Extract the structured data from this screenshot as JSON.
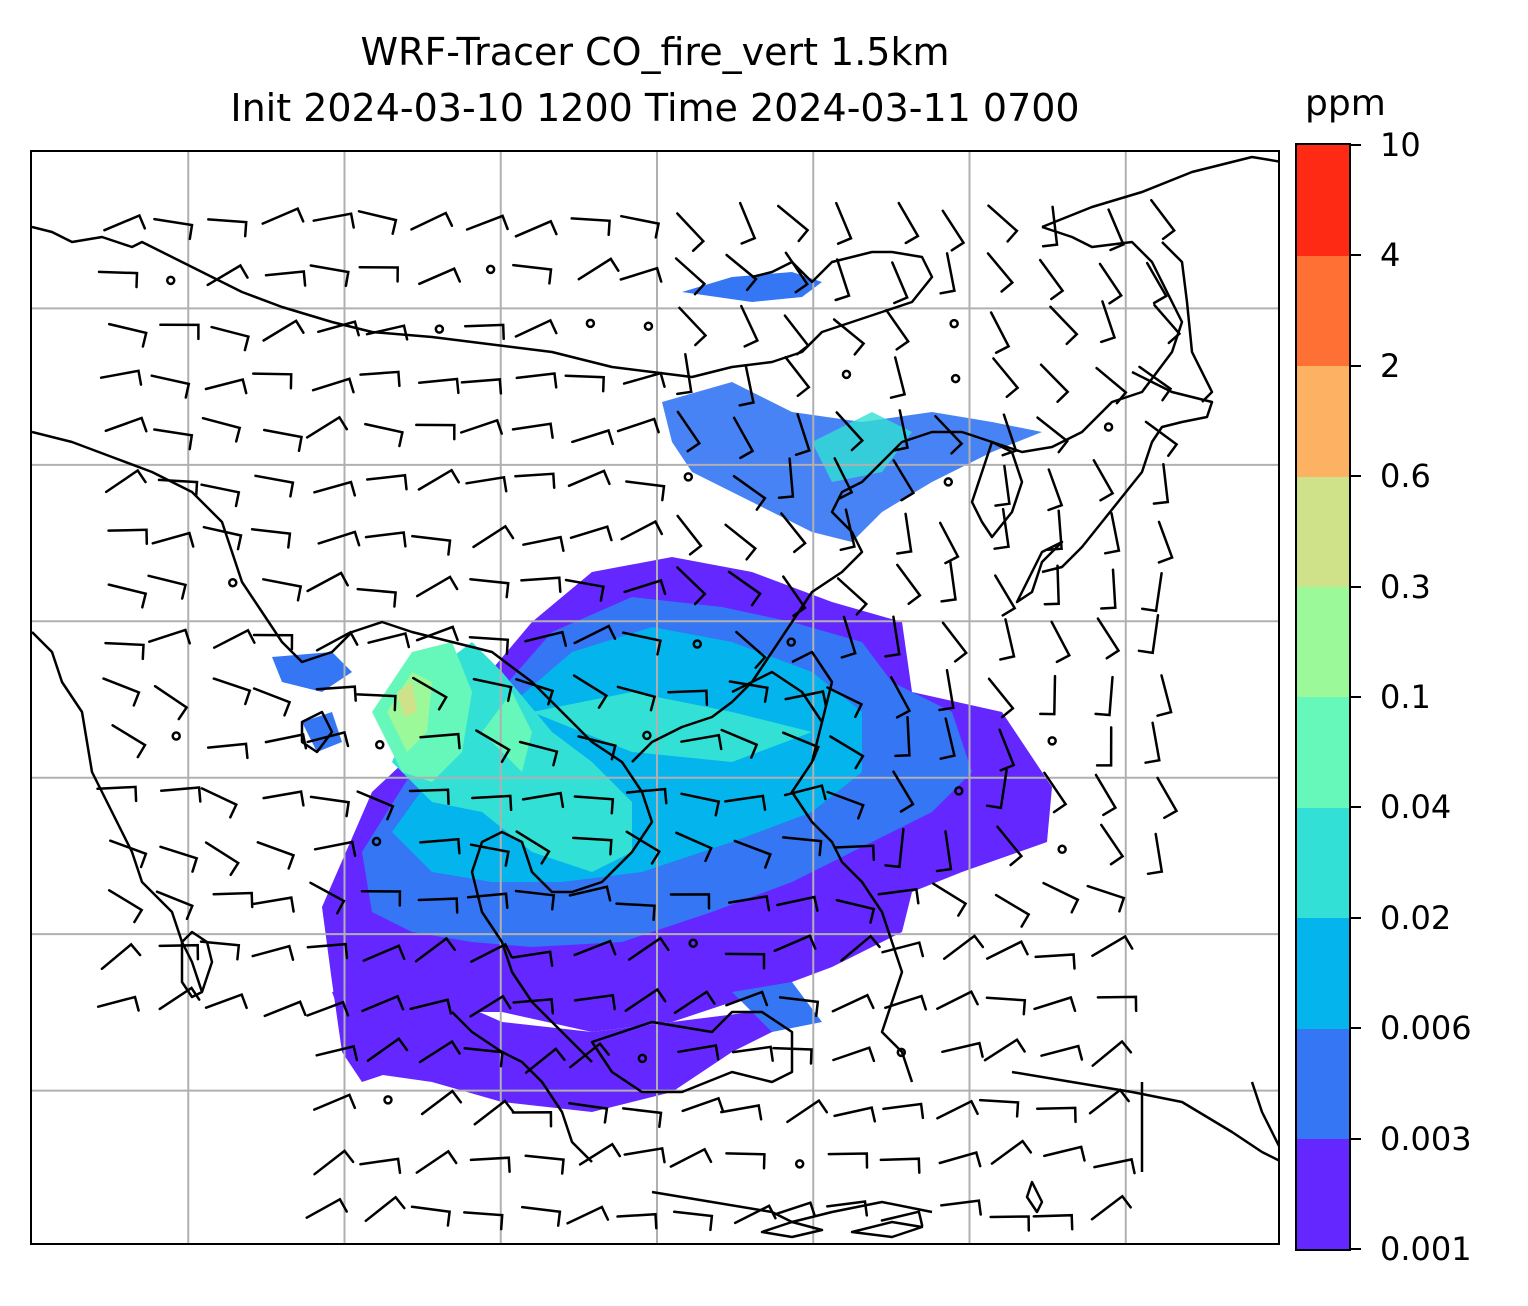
{
  "title": {
    "line1": "WRF-Tracer CO_fire_vert 1.5km",
    "line2": "Init 2024-03-10 1200 Time 2024-03-11 0700"
  },
  "colorbar": {
    "unit": "ppm",
    "levels": [
      {
        "label": "0.001",
        "color": "#6427ff"
      },
      {
        "label": "0.003",
        "color": "#3476f4"
      },
      {
        "label": "0.006",
        "color": "#03b5ec"
      },
      {
        "label": "0.02",
        "color": "#32e0d5"
      },
      {
        "label": "0.04",
        "color": "#66f8ba"
      },
      {
        "label": "0.1",
        "color": "#9bf999"
      },
      {
        "label": "0.3",
        "color": "#cfe189"
      },
      {
        "label": "0.6",
        "color": "#fdb162"
      },
      {
        "label": "2",
        "color": "#ff7035"
      },
      {
        "label": "4",
        "color": "#ff2a14"
      },
      {
        "label": "10",
        "color": null
      }
    ]
  },
  "map": {
    "gridline_color": "#b0b0b0",
    "coastline_color": "#000000",
    "barb_color": "#000000",
    "grid_columns": 8,
    "grid_rows": 7
  }
}
